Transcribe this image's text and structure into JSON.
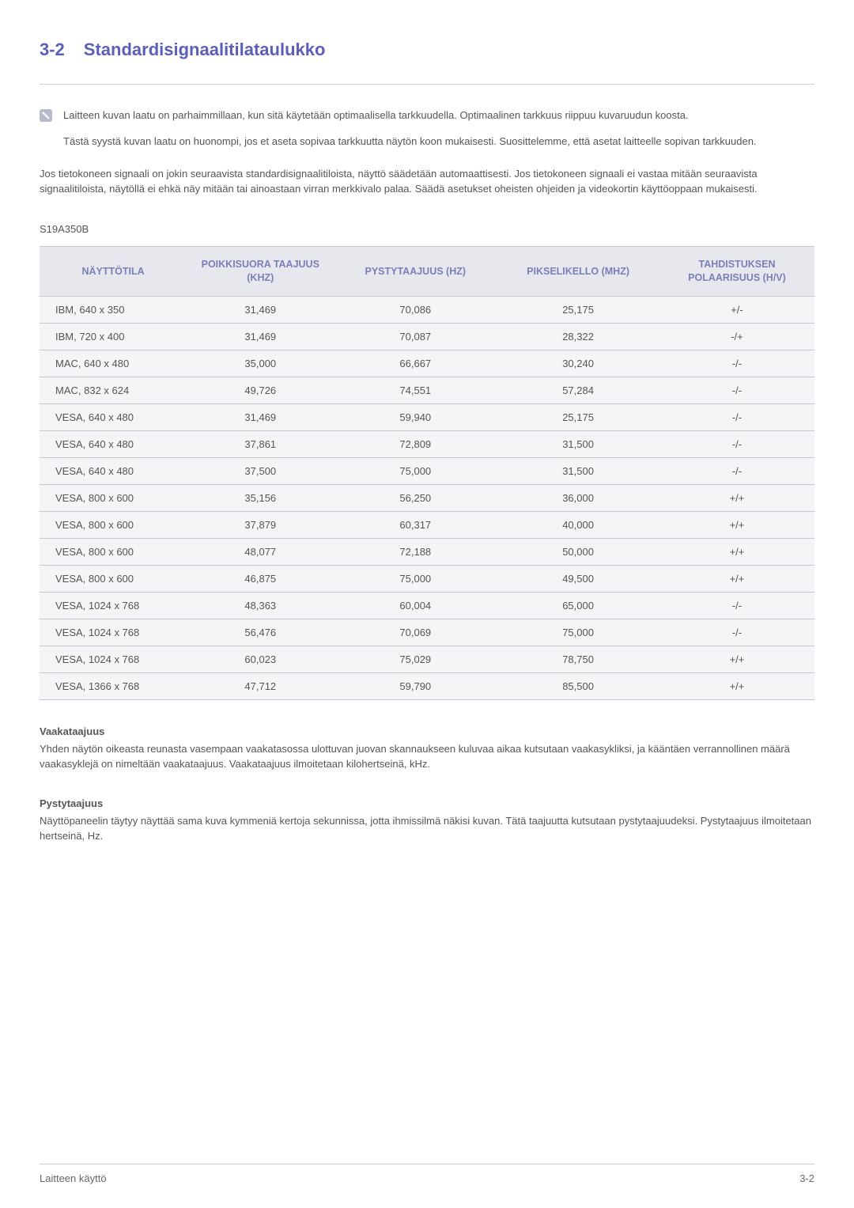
{
  "heading": {
    "number": "3-2",
    "title": "Standardisignaalitilataulukko"
  },
  "note": {
    "para1": "Laitteen kuvan laatu on parhaimmillaan, kun sitä käytetään optimaalisella tarkkuudella. Optimaalinen tarkkuus riippuu kuvaruudun koosta.",
    "para2": "Tästä syystä kuvan laatu on huonompi, jos et aseta sopivaa tarkkuutta näytön koon mukaisesti. Suosittelemme, että asetat laitteelle sopivan tarkkuuden."
  },
  "intro": "Jos tietokoneen signaali on jokin seuraavista standardisignaalitiloista, näyttö säädetään automaattisesti. Jos tietokoneen signaali ei vastaa mitään seuraavista signaalitiloista, näytöllä ei ehkä näy mitään tai ainoastaan virran merkkivalo palaa. Säädä asetukset oheisten ohjeiden ja videokortin käyttöoppaan mukaisesti.",
  "model": "S19A350B",
  "table": {
    "type": "table",
    "header_bg": "#e7e8ee",
    "header_color": "#7a7fb8",
    "row_bg": "#f5f5f7",
    "border_color": "#c8c8d4",
    "columns": [
      "NÄYTTÖTILA",
      "POIKKISUORA TAAJUUS (KHZ)",
      "PYSTYTAAJUUS (HZ)",
      "PIKSELIKELLO (MHZ)",
      "TAHDISTUKSEN POLAARISUUS (H/V)"
    ],
    "rows": [
      [
        "IBM, 640 x 350",
        "31,469",
        "70,086",
        "25,175",
        "+/-"
      ],
      [
        "IBM, 720 x 400",
        "31,469",
        "70,087",
        "28,322",
        "-/+"
      ],
      [
        "MAC, 640 x 480",
        "35,000",
        "66,667",
        "30,240",
        "-/-"
      ],
      [
        "MAC, 832 x 624",
        "49,726",
        "74,551",
        "57,284",
        "-/-"
      ],
      [
        "VESA, 640 x 480",
        "31,469",
        "59,940",
        "25,175",
        "-/-"
      ],
      [
        "VESA, 640 x 480",
        "37,861",
        "72,809",
        "31,500",
        "-/-"
      ],
      [
        "VESA, 640 x 480",
        "37,500",
        "75,000",
        "31,500",
        "-/-"
      ],
      [
        "VESA, 800 x 600",
        "35,156",
        "56,250",
        "36,000",
        "+/+"
      ],
      [
        "VESA, 800 x 600",
        "37,879",
        "60,317",
        "40,000",
        "+/+"
      ],
      [
        "VESA, 800 x 600",
        "48,077",
        "72,188",
        "50,000",
        "+/+"
      ],
      [
        "VESA, 800 x 600",
        "46,875",
        "75,000",
        "49,500",
        "+/+"
      ],
      [
        "VESA, 1024 x 768",
        "48,363",
        "60,004",
        "65,000",
        "-/-"
      ],
      [
        "VESA, 1024 x 768",
        "56,476",
        "70,069",
        "75,000",
        "-/-"
      ],
      [
        "VESA, 1024 x 768",
        "60,023",
        "75,029",
        "78,750",
        "+/+"
      ],
      [
        "VESA, 1366 x 768",
        "47,712",
        "59,790",
        "85,500",
        "+/+"
      ]
    ]
  },
  "defs": {
    "h_title": "Vaakataajuus",
    "h_body": "Yhden näytön oikeasta reunasta vasempaan vaakatasossa ulottuvan juovan skannaukseen kuluvaa aikaa kutsutaan vaakasykliksi, ja kääntäen verrannollinen määrä vaakasyklejä on nimeltään vaakataajuus. Vaakataajuus ilmoitetaan kilohertseinä, kHz.",
    "v_title": "Pystytaajuus",
    "v_body": "Näyttöpaneelin täytyy näyttää sama kuva kymmeniä kertoja sekunnissa, jotta ihmissilmä näkisi kuvan. Tätä taajuutta kutsutaan pystytaajuudeksi. Pystytaajuus ilmoitetaan hertseinä, Hz."
  },
  "footer": {
    "left": "Laitteen käyttö",
    "right": "3-2"
  }
}
